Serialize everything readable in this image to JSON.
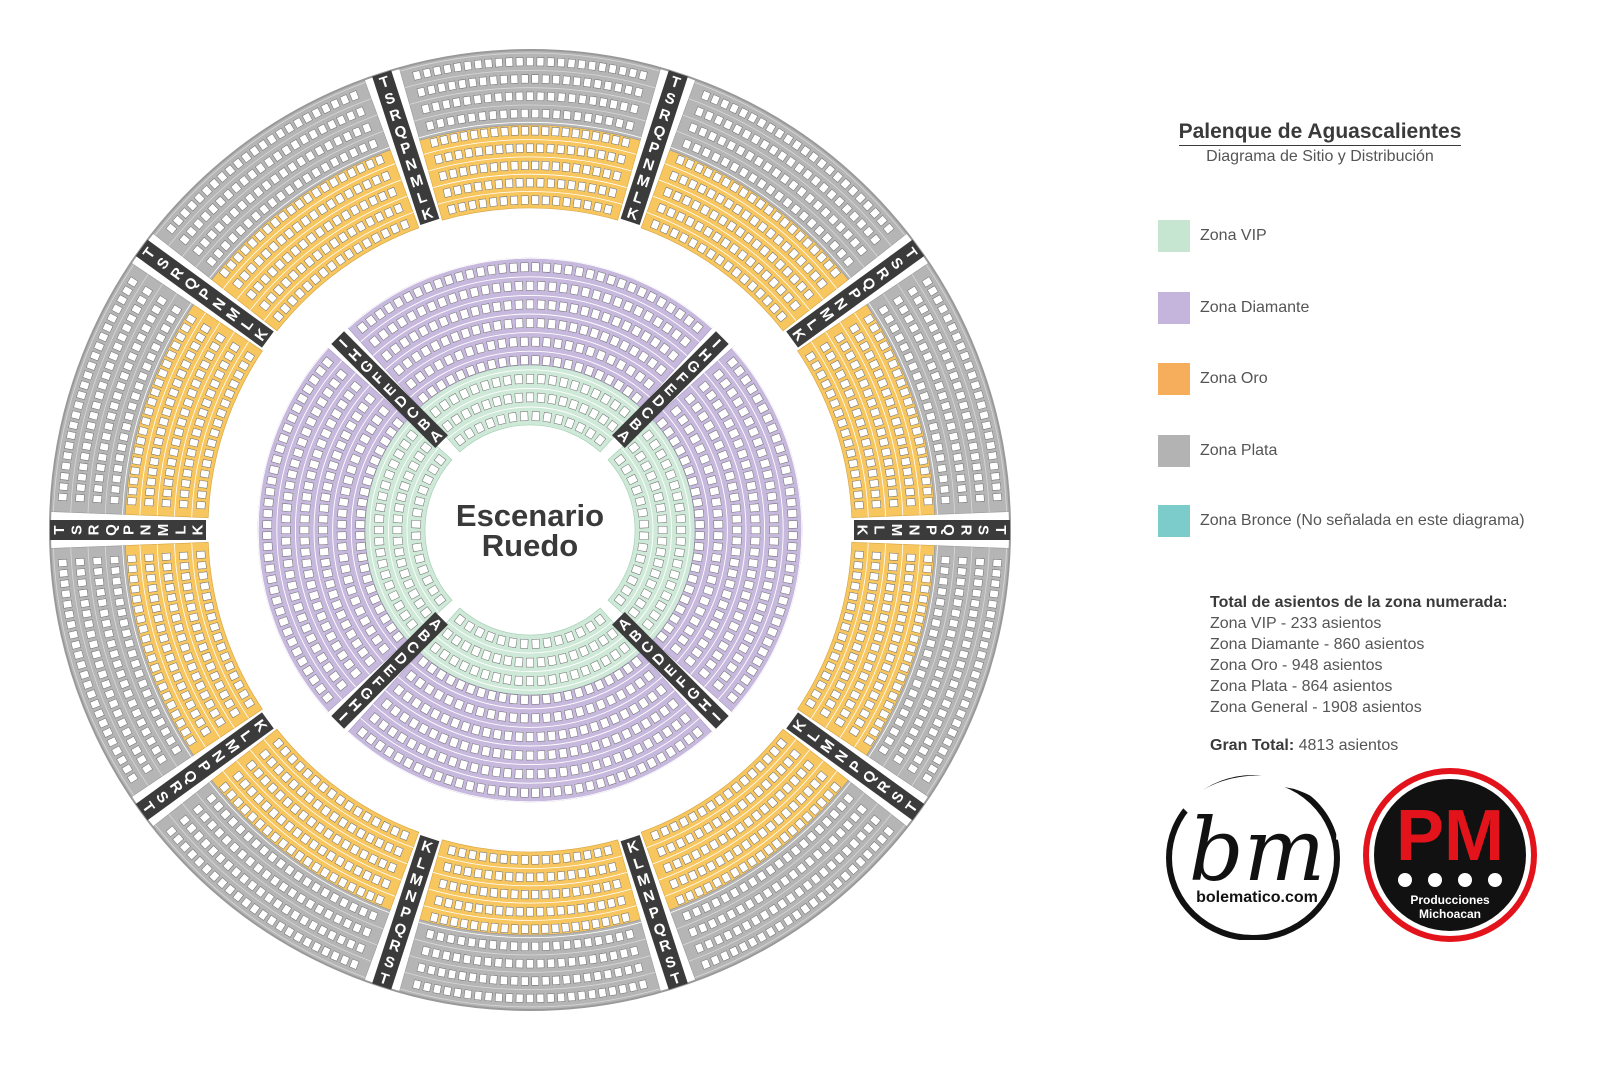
{
  "stage": {
    "line1": "Escenario",
    "line2": "Ruedo"
  },
  "legend": {
    "title": "Palenque de Aguascalientes",
    "subtitle": "Diagrama de Sitio y Distribución",
    "items": [
      {
        "label": "Zona VIP",
        "color": "#c7e6d2"
      },
      {
        "label": "Zona Diamante",
        "color": "#c5b5dd"
      },
      {
        "label": "Zona Oro",
        "color": "#f6ae5c"
      },
      {
        "label": "Zona Plata",
        "color": "#b3b3b3"
      },
      {
        "label": "Zona Bronce (No señalada en este diagrama)",
        "color": "#7ccccb"
      }
    ]
  },
  "totals": {
    "heading": "Total de asientos de la zona numerada:",
    "lines": [
      "Zona VIP - 233 asientos",
      "Zona Diamante - 860 asientos",
      "Zona Oro - 948 asientos",
      "Zona Plata - 864 asientos",
      "Zona General - 1908 asientos"
    ],
    "grand_label": "Gran Total:",
    "grand_value": "4813 asientos"
  },
  "rows": {
    "inner": [
      "A",
      "B",
      "C",
      "D",
      "E",
      "F",
      "G",
      "H",
      "I"
    ],
    "outer": [
      "K",
      "L",
      "M",
      "N",
      "P",
      "Q",
      "R",
      "S",
      "T"
    ]
  },
  "seat_colors": {
    "vip": "#cfe9d8",
    "diamante": "#c7b8de",
    "oro": "#f7c65f",
    "plata": "#b5b5b5",
    "aisle": "#3b3b3b",
    "seat": "#ffffff"
  },
  "logos": {
    "bm": {
      "letters": "bm",
      "site": "bolematico.com"
    },
    "pm": {
      "letters": "PM",
      "line1": "Producciones",
      "line2": "Michoacan",
      "color": "#e3131b"
    }
  }
}
